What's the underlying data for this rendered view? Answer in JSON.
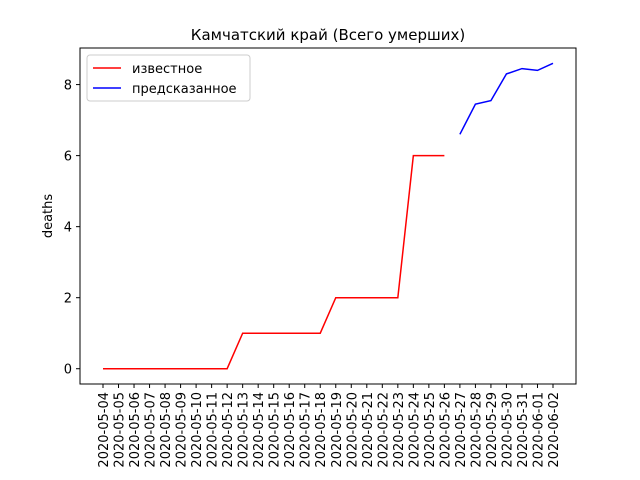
{
  "chart_data": {
    "type": "line",
    "title": "Камчатский край (Всего умерших)",
    "ylabel": "deaths",
    "categories": [
      "2020-05-04",
      "2020-05-05",
      "2020-05-06",
      "2020-05-07",
      "2020-05-08",
      "2020-05-09",
      "2020-05-10",
      "2020-05-11",
      "2020-05-12",
      "2020-05-13",
      "2020-05-14",
      "2020-05-15",
      "2020-05-16",
      "2020-05-17",
      "2020-05-18",
      "2020-05-19",
      "2020-05-20",
      "2020-05-21",
      "2020-05-22",
      "2020-05-23",
      "2020-05-24",
      "2020-05-25",
      "2020-05-26",
      "2020-05-27",
      "2020-05-28",
      "2020-05-29",
      "2020-05-30",
      "2020-05-31",
      "2020-06-01",
      "2020-06-02"
    ],
    "series": [
      {
        "name": "известное",
        "color": "#ff0000",
        "values": [
          0,
          0,
          0,
          0,
          0,
          0,
          0,
          0,
          0,
          1,
          1,
          1,
          1,
          1,
          1,
          2,
          2,
          2,
          2,
          2,
          6,
          6,
          6,
          null,
          null,
          null,
          null,
          null,
          null,
          null
        ]
      },
      {
        "name": "предсказанное",
        "color": "#0000ff",
        "values": [
          null,
          null,
          null,
          null,
          null,
          null,
          null,
          null,
          null,
          null,
          null,
          null,
          null,
          null,
          null,
          null,
          null,
          null,
          null,
          null,
          null,
          null,
          null,
          6.6,
          7.45,
          7.55,
          8.3,
          8.45,
          8.4,
          8.6
        ]
      }
    ],
    "ylim": [
      -0.43,
      9.03
    ],
    "yticks": [
      0,
      2,
      4,
      6,
      8
    ],
    "grid": false,
    "legend": "upper left"
  }
}
